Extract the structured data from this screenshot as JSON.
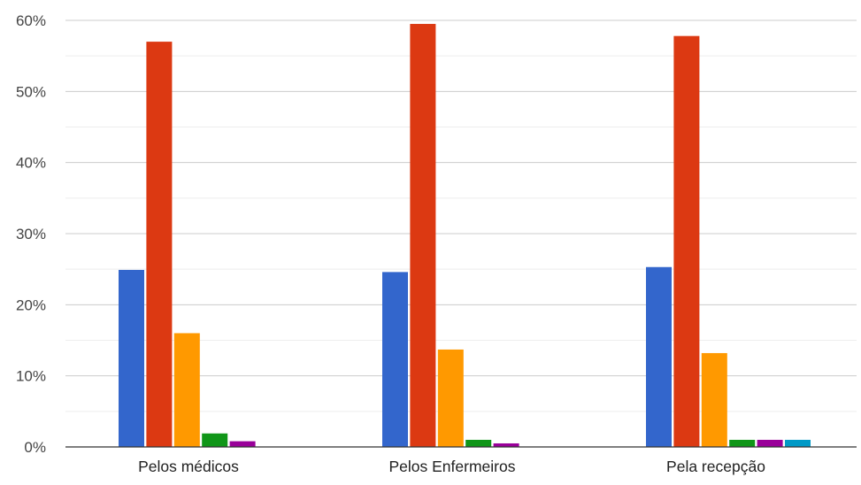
{
  "chart_data": {
    "type": "bar",
    "categories": [
      "Pelos médicos",
      "Pelos Enfermeiros",
      "Pela recepção"
    ],
    "y_ticks": [
      "0%",
      "10%",
      "20%",
      "30%",
      "40%",
      "50%",
      "60%"
    ],
    "ylim": [
      0,
      60
    ],
    "y_unit": "%",
    "grid": true,
    "legend": "none",
    "series": [
      {
        "color": "#3366cc",
        "values": [
          24.9,
          24.6,
          25.3
        ]
      },
      {
        "color": "#dc3912",
        "values": [
          57.0,
          59.5,
          57.8
        ]
      },
      {
        "color": "#ff9900",
        "values": [
          16.0,
          13.7,
          13.2
        ]
      },
      {
        "color": "#109618",
        "values": [
          1.9,
          1.0,
          1.0
        ]
      },
      {
        "color": "#990099",
        "values": [
          0.8,
          0.5,
          1.0
        ]
      },
      {
        "color": "#0099c6",
        "values": [
          0,
          0,
          1.0
        ]
      }
    ]
  }
}
